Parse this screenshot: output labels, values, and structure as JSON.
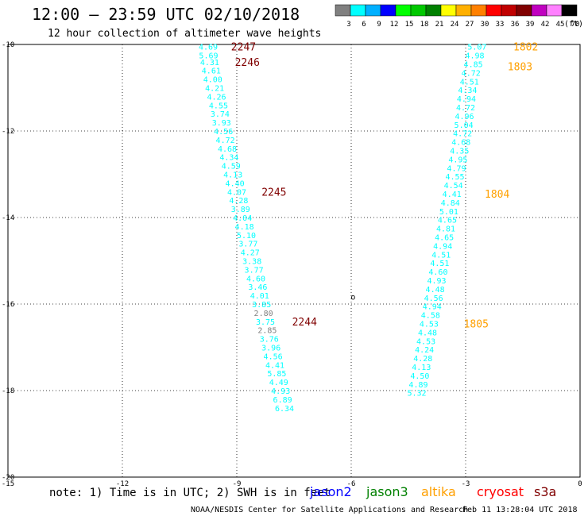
{
  "header": {
    "title": "12:00 – 23:59 UTC 02/10/2018",
    "subtitle": "12 hour collection of altimeter wave heights"
  },
  "legend_scale": {
    "labels": [
      "3",
      "6",
      "9",
      "12",
      "15",
      "18",
      "21",
      "24",
      "27",
      "30",
      "33",
      "36",
      "39",
      "42",
      "45",
      "70"
    ],
    "unit": "(ft)",
    "colors": [
      "#808080",
      "#00ffff",
      "#00b0ff",
      "#0000ff",
      "#00ff00",
      "#00c800",
      "#008000",
      "#ffff00",
      "#ffb000",
      "#ff8000",
      "#ff0000",
      "#c00000",
      "#800000",
      "#c000c0",
      "#ff80ff",
      "#000000"
    ]
  },
  "footer": {
    "note": "note: 1) Time is in UTC; 2) SWH is in feet",
    "sources": [
      {
        "name": "jason2",
        "color": "#0000ff"
      },
      {
        "name": "jason3",
        "color": "#008000"
      },
      {
        "name": "altika",
        "color": "#ffa000"
      },
      {
        "name": "cryosat",
        "color": "#ff0000"
      },
      {
        "name": "s3a",
        "color": "#800000"
      }
    ],
    "credit": "NOAA/NESDIS Center for Satellite Applications and Research",
    "timestamp": "Feb 11 13:28:04 UTC 2018"
  },
  "chart_data": {
    "type": "scatter",
    "xlim": [
      -15,
      0
    ],
    "ylim": [
      -20,
      -10
    ],
    "x_ticks": [
      -15,
      -12,
      -9,
      -6,
      -3,
      0
    ],
    "x_tick_labels": [
      "-15",
      "-12",
      "-9",
      "-6",
      "-3",
      "0"
    ],
    "y_ticks": [
      -10,
      -12,
      -14,
      -16,
      -18,
      -20
    ],
    "y_tick_labels": [
      "-10",
      "-12",
      "-14",
      "-16",
      "-18",
      "-20"
    ],
    "grid": true,
    "colors": {
      "cyan": "#00ffff",
      "gray": "#808080",
      "s3a": "#800000",
      "altika": "#ffa000"
    },
    "series": [
      {
        "name": "s3a",
        "color": "#00ffff",
        "points": [
          {
            "x": -9.75,
            "y": -10.05,
            "label": "4.69"
          },
          {
            "x": -9.74,
            "y": -10.25,
            "label": "5.69"
          },
          {
            "x": -9.71,
            "y": -10.4,
            "label": "4.31"
          },
          {
            "x": -9.67,
            "y": -10.6,
            "label": "4.61"
          },
          {
            "x": -9.63,
            "y": -10.8,
            "label": "4.00"
          },
          {
            "x": -9.58,
            "y": -11.0,
            "label": "4.21"
          },
          {
            "x": -9.53,
            "y": -11.2,
            "label": "4.26"
          },
          {
            "x": -9.48,
            "y": -11.4,
            "label": "4.55"
          },
          {
            "x": -9.44,
            "y": -11.6,
            "label": "3.74"
          },
          {
            "x": -9.4,
            "y": -11.8,
            "label": "3.93"
          },
          {
            "x": -9.35,
            "y": -12.0,
            "label": "4.56"
          },
          {
            "x": -9.3,
            "y": -12.2,
            "label": "4.72"
          },
          {
            "x": -9.25,
            "y": -12.4,
            "label": "4.68"
          },
          {
            "x": -9.2,
            "y": -12.6,
            "label": "4.34"
          },
          {
            "x": -9.15,
            "y": -12.8,
            "label": "4.59"
          },
          {
            "x": -9.1,
            "y": -13.0,
            "label": "4.13"
          },
          {
            "x": -9.05,
            "y": -13.2,
            "label": "4.40"
          },
          {
            "x": -9.0,
            "y": -13.4,
            "label": "4.07"
          },
          {
            "x": -8.95,
            "y": -13.6,
            "label": "4.28"
          },
          {
            "x": -8.9,
            "y": -13.8,
            "label": "3.89"
          },
          {
            "x": -8.85,
            "y": -14.0,
            "label": "4.04"
          },
          {
            "x": -8.8,
            "y": -14.2,
            "label": "4.18"
          },
          {
            "x": -8.75,
            "y": -14.4,
            "label": "5.10"
          },
          {
            "x": -8.7,
            "y": -14.6,
            "label": "3.77"
          },
          {
            "x": -8.65,
            "y": -14.8,
            "label": "4.27"
          },
          {
            "x": -8.6,
            "y": -15.0,
            "label": "3.38"
          },
          {
            "x": -8.55,
            "y": -15.2,
            "label": "3.77"
          },
          {
            "x": -8.5,
            "y": -15.4,
            "label": "4.60"
          },
          {
            "x": -8.45,
            "y": -15.6,
            "label": "3.46"
          },
          {
            "x": -8.4,
            "y": -15.8,
            "label": "4.01"
          },
          {
            "x": -8.35,
            "y": -16.0,
            "label": "3.85"
          },
          {
            "x": -8.3,
            "y": -16.2,
            "label": "2.80",
            "color": "gray"
          },
          {
            "x": -8.25,
            "y": -16.4,
            "label": "3.75"
          },
          {
            "x": -8.2,
            "y": -16.6,
            "label": "2.85",
            "color": "gray"
          },
          {
            "x": -8.15,
            "y": -16.8,
            "label": "3.76"
          },
          {
            "x": -8.1,
            "y": -17.0,
            "label": "3.96"
          },
          {
            "x": -8.05,
            "y": -17.2,
            "label": "4.56"
          },
          {
            "x": -8.0,
            "y": -17.4,
            "label": "4.41"
          },
          {
            "x": -7.95,
            "y": -17.6,
            "label": "5.85"
          },
          {
            "x": -7.9,
            "y": -17.8,
            "label": "4.49"
          },
          {
            "x": -7.85,
            "y": -18.0,
            "label": "4.93"
          },
          {
            "x": -7.8,
            "y": -18.2,
            "label": "6.89"
          },
          {
            "x": -7.75,
            "y": -18.4,
            "label": "6.34"
          }
        ],
        "time_labels": [
          {
            "x": -9.15,
            "y": -10.05,
            "label": "2247"
          },
          {
            "x": -9.05,
            "y": -10.4,
            "label": "2246"
          },
          {
            "x": -8.35,
            "y": -13.4,
            "label": "2245"
          },
          {
            "x": -7.55,
            "y": -16.4,
            "label": "2244"
          }
        ]
      },
      {
        "name": "altika",
        "color": "#00ffff",
        "points": [
          {
            "x": -2.7,
            "y": -10.05,
            "label": "5.07"
          },
          {
            "x": -2.76,
            "y": -10.25,
            "label": "4.98"
          },
          {
            "x": -2.8,
            "y": -10.45,
            "label": "4.85"
          },
          {
            "x": -2.86,
            "y": -10.65,
            "label": "4.72"
          },
          {
            "x": -2.9,
            "y": -10.85,
            "label": "4.51"
          },
          {
            "x": -2.95,
            "y": -11.05,
            "label": "4.34"
          },
          {
            "x": -2.98,
            "y": -11.25,
            "label": "4.94"
          },
          {
            "x": -3.0,
            "y": -11.45,
            "label": "4.72"
          },
          {
            "x": -3.03,
            "y": -11.65,
            "label": "4.96"
          },
          {
            "x": -3.05,
            "y": -11.85,
            "label": "5.04"
          },
          {
            "x": -3.08,
            "y": -12.05,
            "label": "4.72"
          },
          {
            "x": -3.12,
            "y": -12.25,
            "label": "4.68"
          },
          {
            "x": -3.16,
            "y": -12.45,
            "label": "4.35"
          },
          {
            "x": -3.2,
            "y": -12.65,
            "label": "4.95"
          },
          {
            "x": -3.24,
            "y": -12.85,
            "label": "4.79"
          },
          {
            "x": -3.28,
            "y": -13.05,
            "label": "4.55"
          },
          {
            "x": -3.32,
            "y": -13.25,
            "label": "4.54"
          },
          {
            "x": -3.36,
            "y": -13.45,
            "label": "4.41"
          },
          {
            "x": -3.4,
            "y": -13.65,
            "label": "4.84"
          },
          {
            "x": -3.44,
            "y": -13.85,
            "label": "5.01"
          },
          {
            "x": -3.48,
            "y": -14.05,
            "label": "4.65"
          },
          {
            "x": -3.52,
            "y": -14.25,
            "label": "4.81"
          },
          {
            "x": -3.56,
            "y": -14.45,
            "label": "4.65"
          },
          {
            "x": -3.6,
            "y": -14.65,
            "label": "4.94"
          },
          {
            "x": -3.64,
            "y": -14.85,
            "label": "4.51"
          },
          {
            "x": -3.68,
            "y": -15.05,
            "label": "4.51"
          },
          {
            "x": -3.72,
            "y": -15.25,
            "label": "4.60"
          },
          {
            "x": -3.76,
            "y": -15.45,
            "label": "4.93"
          },
          {
            "x": -3.8,
            "y": -15.65,
            "label": "4.48"
          },
          {
            "x": -3.84,
            "y": -15.85,
            "label": "4.56"
          },
          {
            "x": -3.88,
            "y": -16.05,
            "label": "4.94"
          },
          {
            "x": -3.92,
            "y": -16.25,
            "label": "4.58"
          },
          {
            "x": -3.96,
            "y": -16.45,
            "label": "4.53"
          },
          {
            "x": -4.0,
            "y": -16.65,
            "label": "4.48"
          },
          {
            "x": -4.04,
            "y": -16.85,
            "label": "4.53"
          },
          {
            "x": -4.08,
            "y": -17.05,
            "label": "4.24"
          },
          {
            "x": -4.12,
            "y": -17.25,
            "label": "4.28"
          },
          {
            "x": -4.16,
            "y": -17.45,
            "label": "4.13"
          },
          {
            "x": -4.2,
            "y": -17.65,
            "label": "4.50"
          },
          {
            "x": -4.24,
            "y": -17.85,
            "label": "4.89"
          },
          {
            "x": -4.28,
            "y": -18.05,
            "label": "5.32"
          }
        ],
        "time_labels": [
          {
            "x": -1.75,
            "y": -10.05,
            "label": "1802"
          },
          {
            "x": -1.9,
            "y": -10.5,
            "label": "1803"
          },
          {
            "x": -2.5,
            "y": -13.45,
            "label": "1804"
          },
          {
            "x": -3.05,
            "y": -16.45,
            "label": "1805"
          }
        ]
      }
    ],
    "annotations": [
      {
        "x": -5.95,
        "y": -15.9,
        "label": "o"
      }
    ]
  }
}
